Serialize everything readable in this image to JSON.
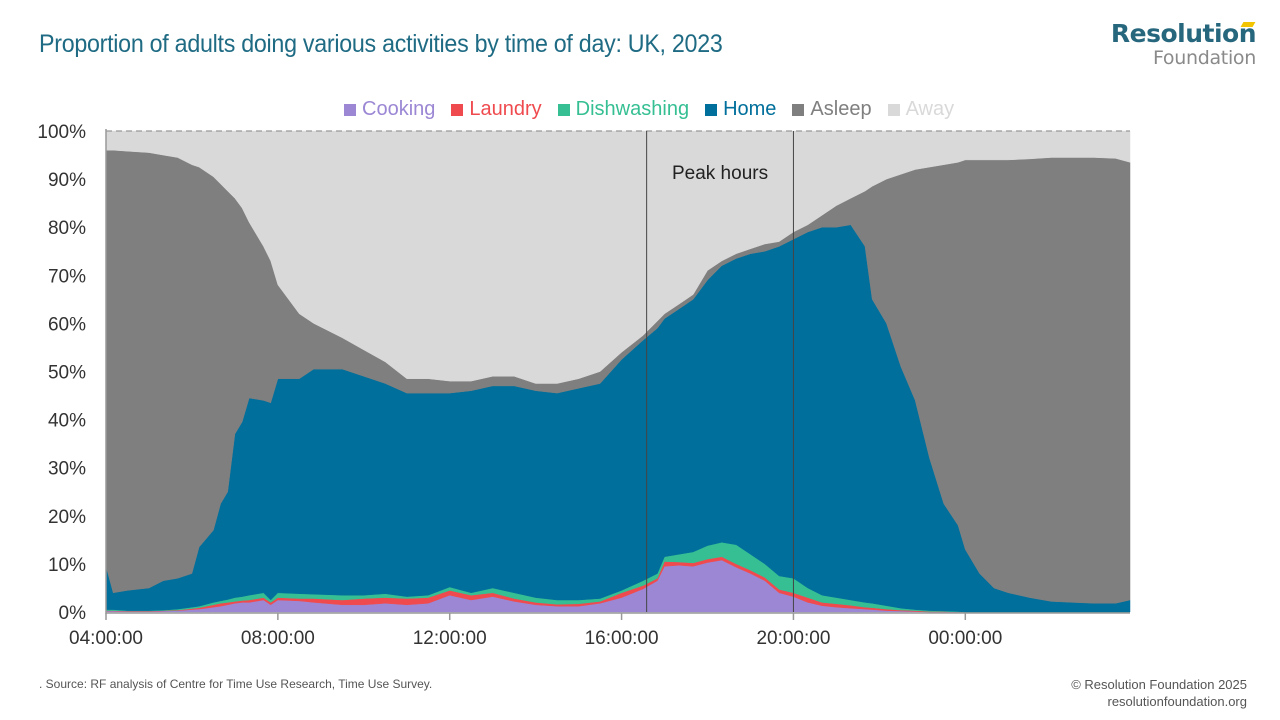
{
  "title": "Proportion of adults doing various activities  by time of day: UK, 2023",
  "logo": {
    "line1": "Resolution",
    "line2": "Foundation"
  },
  "footer": {
    "source": ". Source: RF analysis of Centre for Time Use Research, Time Use Survey.",
    "copyright": "© Resolution Foundation 2025",
    "website": "resolutionfoundation.org"
  },
  "chart_data": {
    "type": "area",
    "stacked": true,
    "title": "Proportion of adults doing various activities  by time of day: UK, 2023",
    "xlabel": "",
    "ylabel": "",
    "ylim": [
      0,
      100
    ],
    "y_ticks": [
      "0%",
      "10%",
      "20%",
      "30%",
      "40%",
      "50%",
      "60%",
      "70%",
      "80%",
      "90%",
      "100%"
    ],
    "x_ticks": [
      "04:00:00",
      "08:00:00",
      "12:00:00",
      "16:00:00",
      "20:00:00",
      "00:00:00"
    ],
    "x_range": [
      "04:00",
      "03:50"
    ],
    "legend_position": "top",
    "annotation": {
      "label": "Peak hours",
      "start": "16:35",
      "end": "20:00"
    },
    "x": [
      "04:00",
      "04:10",
      "04:30",
      "05:00",
      "05:20",
      "05:40",
      "06:00",
      "06:10",
      "06:30",
      "06:40",
      "06:50",
      "07:00",
      "07:10",
      "07:20",
      "07:40",
      "07:50",
      "08:00",
      "08:30",
      "08:50",
      "09:30",
      "10:00",
      "10:30",
      "11:00",
      "11:30",
      "12:00",
      "12:30",
      "13:00",
      "13:30",
      "14:00",
      "14:30",
      "15:00",
      "15:30",
      "16:00",
      "16:30",
      "16:50",
      "17:00",
      "17:20",
      "17:40",
      "18:00",
      "18:20",
      "18:40",
      "19:00",
      "19:20",
      "19:40",
      "20:00",
      "20:20",
      "20:40",
      "21:00",
      "21:20",
      "21:40",
      "21:50",
      "22:10",
      "22:30",
      "22:50",
      "23:10",
      "23:30",
      "23:50",
      "00:00",
      "00:20",
      "00:40",
      "01:00",
      "01:30",
      "02:00",
      "02:30",
      "03:00",
      "03:30",
      "03:50"
    ],
    "series": [
      {
        "name": "Cooking",
        "color": "#9b87d4",
        "values": [
          0.2,
          0.2,
          0.1,
          0.1,
          0.2,
          0.3,
          0.5,
          0.6,
          1,
          1.2,
          1.5,
          1.8,
          2,
          2,
          2.5,
          1.5,
          2.5,
          2.3,
          2,
          1.5,
          1.5,
          1.8,
          1.5,
          1.8,
          3.5,
          2.5,
          3.2,
          2.2,
          1.5,
          1.2,
          1.2,
          1.8,
          3,
          4.8,
          6.5,
          9.5,
          9.7,
          9.5,
          10.3,
          10.8,
          9.3,
          8,
          6.5,
          4,
          3.2,
          2,
          1.3,
          1,
          0.8,
          0.6,
          0.5,
          0.3,
          0.2,
          0.1,
          0,
          0,
          0,
          0,
          0,
          0,
          0,
          0,
          0,
          0,
          0,
          0,
          0
        ]
      },
      {
        "name": "Laundry",
        "color": "#ef4b4f",
        "values": [
          0.1,
          0.1,
          0.1,
          0.1,
          0.1,
          0.1,
          0.2,
          0.3,
          0.5,
          0.6,
          0.5,
          0.4,
          0.4,
          0.5,
          0.5,
          0.5,
          0.5,
          0.5,
          0.8,
          1,
          1.3,
          1.2,
          1.3,
          1.2,
          1,
          1,
          0.8,
          0.6,
          0.5,
          0.4,
          0.5,
          0.4,
          1,
          0.7,
          0.5,
          1,
          0.7,
          0.7,
          0.7,
          0.7,
          0.7,
          0.7,
          0.7,
          0.7,
          0.8,
          1,
          0.7,
          0.7,
          0.6,
          0.4,
          0.4,
          0.3,
          0.2,
          0.2,
          0.1,
          0.1,
          0,
          0,
          0,
          0,
          0,
          0,
          0,
          0,
          0,
          0,
          0
        ]
      },
      {
        "name": "Dishwashing",
        "color": "#35bf93",
        "values": [
          0.2,
          0.2,
          0.1,
          0.1,
          0.1,
          0.2,
          0.3,
          0.3,
          0.5,
          0.5,
          0.6,
          0.8,
          0.8,
          1,
          1,
          0.5,
          1,
          1,
          0.9,
          1,
          0.7,
          0.8,
          0.4,
          0.5,
          0.7,
          0.5,
          1,
          1.2,
          1,
          0.9,
          0.8,
          0.6,
          0.5,
          1,
          1,
          1,
          1.6,
          2.3,
          2.8,
          3,
          4,
          3.3,
          2.8,
          2.8,
          3,
          2,
          1.5,
          1.3,
          1.1,
          1,
          0.9,
          0.7,
          0.4,
          0.2,
          0.2,
          0.1,
          0.1,
          0,
          0,
          0,
          0,
          0,
          0,
          0,
          0,
          0,
          0
        ]
      },
      {
        "name": "Home",
        "color": "#006f9b",
        "values": [
          9,
          3.5,
          4.2,
          4.7,
          6.1,
          6.4,
          7,
          12.3,
          15,
          20.2,
          22.4,
          34,
          36.3,
          41,
          40,
          41,
          44.5,
          44.7,
          46.8,
          47,
          45.5,
          43.7,
          42.3,
          42,
          40.3,
          42,
          42,
          43,
          43,
          43,
          44,
          44.7,
          48,
          50,
          51,
          49.5,
          51,
          52.5,
          55.2,
          57.5,
          59.5,
          62.5,
          65,
          68.5,
          70.5,
          74,
          76.5,
          77,
          78,
          74,
          63.2,
          58.7,
          50.2,
          43.5,
          31.7,
          22.3,
          17.9,
          13,
          8,
          5,
          4,
          3,
          2.2,
          2,
          1.8,
          1.8,
          2.5
        ]
      },
      {
        "name": "Asleep",
        "color": "#7f7f7f",
        "values": [
          86.5,
          92,
          91.3,
          90.5,
          88.5,
          87.5,
          85,
          79,
          73.5,
          66.5,
          62.5,
          49,
          44.5,
          36.5,
          32,
          29.5,
          19.5,
          13.5,
          9.5,
          6.5,
          5.5,
          4.5,
          3,
          3,
          2.5,
          2,
          2,
          2,
          1.5,
          2,
          2,
          2.5,
          1.5,
          1,
          1.5,
          1,
          1,
          1,
          2,
          1,
          1,
          1,
          1.5,
          1,
          1.5,
          1.5,
          2.5,
          4.5,
          5.5,
          11.5,
          23.5,
          30,
          40,
          48,
          60.5,
          70.5,
          75.5,
          81,
          86,
          89,
          90,
          91.2,
          92.3,
          92.5,
          92.7,
          92.5,
          91
        ]
      },
      {
        "name": "Away",
        "color": "#d9d9d9",
        "values": [
          4,
          4,
          4.2,
          4.5,
          5,
          5.5,
          7,
          7.5,
          9.5,
          11,
          12.5,
          14,
          16,
          19,
          24,
          27,
          32,
          38,
          40,
          43,
          45.5,
          48,
          51.5,
          51.5,
          52,
          52,
          51,
          51,
          52.5,
          52.5,
          51.5,
          50,
          46,
          42.5,
          39.5,
          38,
          36,
          34,
          29,
          27,
          25.5,
          24.5,
          23.5,
          23,
          21,
          19.5,
          17.5,
          15.5,
          14,
          12.5,
          11.5,
          10,
          9,
          8,
          7.5,
          7,
          6.5,
          6,
          6,
          6,
          6,
          5.8,
          5.5,
          5.5,
          5.5,
          5.7,
          6.5
        ]
      }
    ]
  }
}
